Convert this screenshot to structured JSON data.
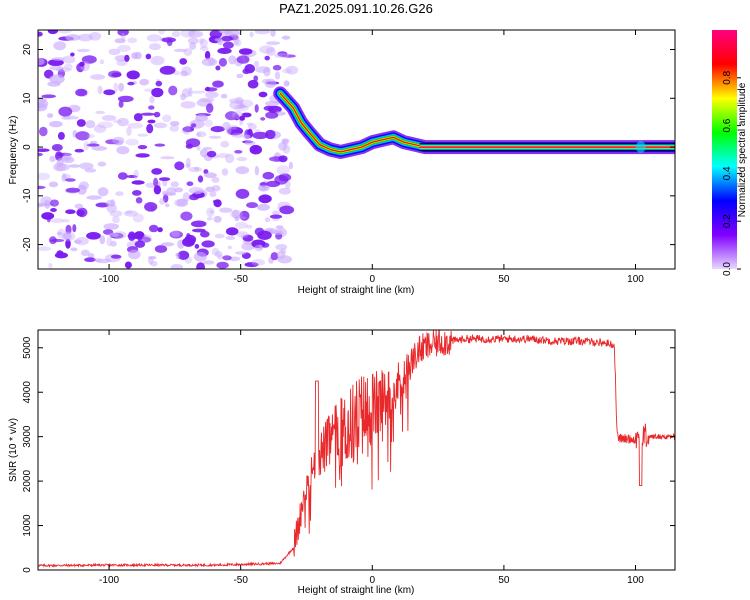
{
  "figure_title": "PAZ1.2025.091.10.26.G26",
  "colors": {
    "snr_line": "#e8282a",
    "axis": "#000000",
    "background": "#ffffff"
  },
  "chart_data": [
    {
      "type": "heatmap",
      "title": "",
      "xlabel": "Height of straight line (km)",
      "ylabel": "Frequency (Hz)",
      "xlim": [
        -127,
        115
      ],
      "ylim": [
        -25,
        24
      ],
      "x_ticks": [
        -100,
        -50,
        0,
        50,
        100
      ],
      "y_ticks": [
        -20,
        -10,
        0,
        10,
        20
      ],
      "colorbar": {
        "label": "Normalized spectral amplitude",
        "range": [
          0,
          1
        ],
        "ticks": [
          0.0,
          0.2,
          0.4,
          0.6,
          0.8
        ],
        "stops": [
          "#e8d8ff",
          "#8000ff",
          "#0000ff",
          "#00ffff",
          "#00ff00",
          "#ffff00",
          "#ff0000",
          "#ff0080"
        ]
      },
      "ridge_path": {
        "x": [
          -35,
          -30,
          -27,
          -24,
          -20,
          -16,
          -12,
          -8,
          -4,
          0,
          4,
          8,
          12,
          16,
          20,
          40,
          60,
          80,
          100,
          115
        ],
        "y": [
          11,
          8,
          5,
          3,
          0.5,
          -0.5,
          -1,
          -0.5,
          0,
          1,
          1.5,
          2,
          1,
          0.5,
          0,
          0,
          0,
          0,
          0,
          0
        ]
      }
    },
    {
      "type": "line",
      "title": "",
      "xlabel": "Height of straight line (km)",
      "ylabel": "SNR (10 * v/v)",
      "xlim": [
        -127,
        115
      ],
      "ylim": [
        0,
        5400
      ],
      "x_ticks": [
        -100,
        -50,
        0,
        50,
        100
      ],
      "y_ticks": [
        0,
        1000,
        2000,
        3000,
        4000,
        5000
      ],
      "series": [
        {
          "x": [
            -127,
            -100,
            -60,
            -35,
            -30,
            -28,
            -26,
            -24,
            -22,
            -20,
            -18,
            -16,
            -14,
            -12,
            -10,
            -8,
            -6,
            -4,
            -2,
            0,
            2,
            4,
            6,
            8,
            10,
            12,
            14,
            16,
            18,
            20,
            22,
            24,
            26,
            28,
            30,
            35,
            40,
            50,
            60,
            70,
            80,
            90,
            92,
            93,
            95,
            100,
            102,
            105,
            110,
            115
          ],
          "y": [
            100,
            110,
            110,
            150,
            500,
            1000,
            1700,
            2000,
            2400,
            2600,
            2750,
            2900,
            3000,
            3100,
            3150,
            3250,
            3350,
            3450,
            3550,
            3650,
            3700,
            3800,
            3900,
            4000,
            4200,
            4400,
            4600,
            4800,
            4950,
            5000,
            5050,
            5100,
            5150,
            5150,
            5150,
            5200,
            5200,
            5200,
            5200,
            5150,
            5150,
            5100,
            5050,
            3000,
            2950,
            2950,
            3000,
            3000,
            3000,
            3000
          ]
        }
      ]
    }
  ]
}
